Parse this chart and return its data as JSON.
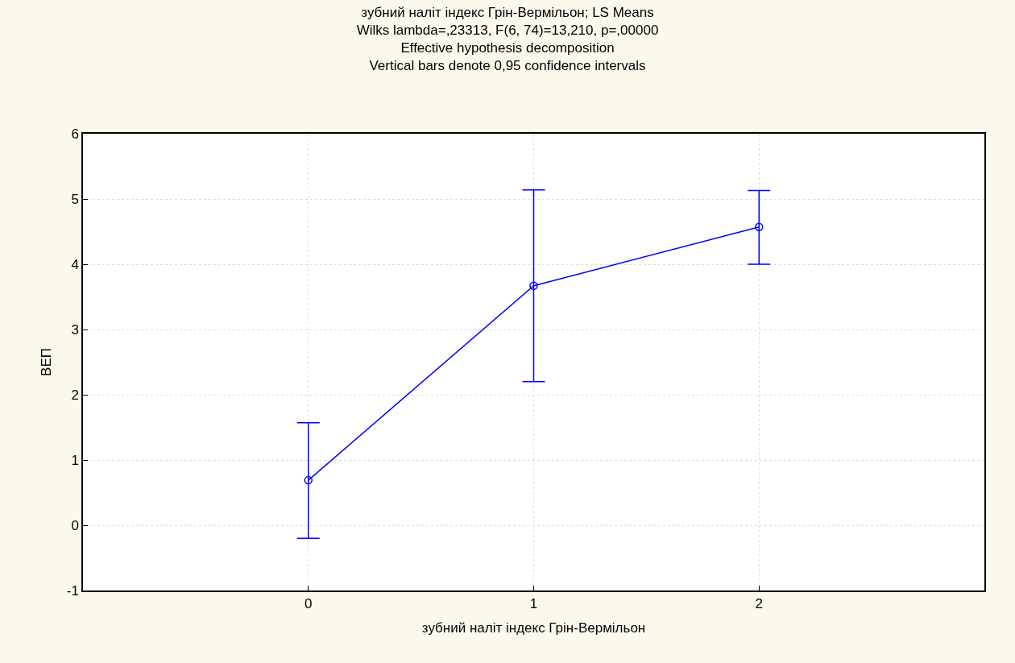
{
  "chart_data": {
    "type": "line",
    "title": "зубний наліт індекс Грін-Вермільон; LS Means\nWilks lambda=,23313, F(6, 74)=13,210, p=,00000\nEffective hypothesis decomposition\nVertical bars denote 0,95 confidence intervals",
    "xlabel": "зубний наліт індекс Грін-Вермільон",
    "ylabel": "ВЕП",
    "x": [
      0,
      1,
      2
    ],
    "series": [
      {
        "color": "#0000ff",
        "values": [
          0.69,
          3.67,
          4.57
        ],
        "errors": [
          [
            -0.2,
            1.57
          ],
          [
            2.2,
            5.14
          ],
          [
            4.0,
            5.13
          ]
        ]
      }
    ],
    "xlim": [
      -1,
      3
    ],
    "xticks": [
      0,
      1,
      2
    ],
    "ylim": [
      -1,
      6
    ],
    "yticks": [
      -1,
      0,
      1,
      2,
      3,
      4,
      5,
      6
    ],
    "grid": true,
    "marker": "circle",
    "line_style": "solid",
    "legend": false
  }
}
